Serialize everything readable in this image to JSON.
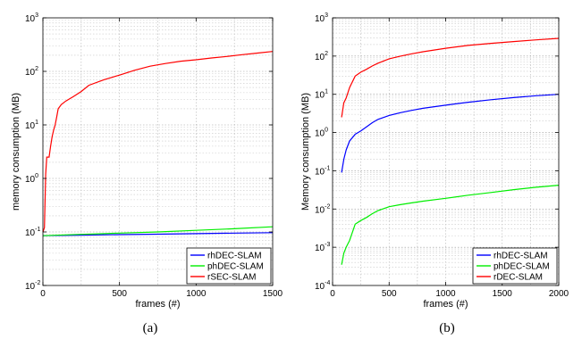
{
  "chart_data": [
    {
      "type": "line",
      "caption": "(a)",
      "xlabel": "frames (#)",
      "ylabel": "memory consumption (MB)",
      "xlim": [
        0,
        1500
      ],
      "ylim": [
        0.01,
        1000
      ],
      "yscale": "log",
      "grid": true,
      "legend_position": "bottom-right",
      "xticks": [
        "0",
        "500",
        "1000",
        "1500"
      ],
      "yticks": [
        {
          "base": "10",
          "exp": "-2"
        },
        {
          "base": "10",
          "exp": "-1"
        },
        {
          "base": "10",
          "exp": "0"
        },
        {
          "base": "10",
          "exp": "1"
        },
        {
          "base": "10",
          "exp": "2"
        },
        {
          "base": "10",
          "exp": "3"
        }
      ],
      "series": [
        {
          "name": "rhDEC-SLAM",
          "color": "#0000ff",
          "x": [
            0,
            250,
            500,
            750,
            1000,
            1250,
            1500
          ],
          "y": [
            0.085,
            0.087,
            0.089,
            0.091,
            0.093,
            0.095,
            0.097
          ]
        },
        {
          "name": "phDEC-SLAM",
          "color": "#00ee00",
          "x": [
            0,
            250,
            500,
            750,
            1000,
            1250,
            1500
          ],
          "y": [
            0.085,
            0.09,
            0.095,
            0.1,
            0.107,
            0.115,
            0.125
          ]
        },
        {
          "name": "rSEC-SLAM",
          "color": "#ff0000",
          "x": [
            0,
            10,
            18,
            25,
            30,
            40,
            50,
            60,
            70,
            80,
            90,
            100,
            120,
            150,
            200,
            250,
            300,
            400,
            500,
            600,
            700,
            800,
            900,
            1000,
            1100,
            1200,
            1300,
            1400,
            1500
          ],
          "y": [
            0.1,
            0.12,
            1.2,
            2.5,
            2.5,
            2.5,
            4,
            6,
            8,
            10,
            14,
            20,
            24,
            28,
            34,
            42,
            55,
            70,
            85,
            105,
            125,
            140,
            155,
            165,
            178,
            190,
            205,
            220,
            235
          ]
        }
      ]
    },
    {
      "type": "line",
      "caption": "(b)",
      "xlabel": "frames (#)",
      "ylabel": "Memory consumption (MB)",
      "xlim": [
        0,
        2000
      ],
      "ylim": [
        0.0001,
        1000
      ],
      "yscale": "log",
      "grid": true,
      "legend_position": "bottom-right",
      "xticks": [
        "0",
        "500",
        "1000",
        "1500",
        "2000"
      ],
      "yticks": [
        {
          "base": "10",
          "exp": "-4"
        },
        {
          "base": "10",
          "exp": "-3"
        },
        {
          "base": "10",
          "exp": "-2"
        },
        {
          "base": "10",
          "exp": "-1"
        },
        {
          "base": "10",
          "exp": "0"
        },
        {
          "base": "10",
          "exp": "1"
        },
        {
          "base": "10",
          "exp": "2"
        },
        {
          "base": "10",
          "exp": "3"
        }
      ],
      "series": [
        {
          "name": "rhDEC-SLAM",
          "color": "#0000ff",
          "x": [
            80,
            100,
            120,
            150,
            200,
            250,
            300,
            350,
            400,
            500,
            600,
            700,
            800,
            1000,
            1200,
            1400,
            1600,
            1800,
            2000
          ],
          "y": [
            0.09,
            0.2,
            0.35,
            0.6,
            0.9,
            1.1,
            1.4,
            1.8,
            2.2,
            2.8,
            3.3,
            3.8,
            4.3,
            5.2,
            6.2,
            7.2,
            8.2,
            9.2,
            10
          ]
        },
        {
          "name": "phDEC-SLAM",
          "color": "#00ee00",
          "x": [
            80,
            100,
            120,
            150,
            200,
            250,
            300,
            350,
            400,
            500,
            600,
            700,
            800,
            1000,
            1200,
            1400,
            1600,
            1800,
            2000
          ],
          "y": [
            0.00035,
            0.0007,
            0.001,
            0.0015,
            0.004,
            0.005,
            0.006,
            0.0075,
            0.009,
            0.0115,
            0.013,
            0.0145,
            0.016,
            0.019,
            0.023,
            0.027,
            0.032,
            0.037,
            0.042
          ]
        },
        {
          "name": "rDEC-SLAM",
          "color": "#ff0000",
          "x": [
            80,
            100,
            120,
            150,
            200,
            250,
            300,
            350,
            400,
            500,
            600,
            700,
            800,
            1000,
            1200,
            1400,
            1600,
            1800,
            2000
          ],
          "y": [
            2.5,
            6,
            8,
            15,
            30,
            38,
            45,
            55,
            65,
            85,
            100,
            115,
            130,
            160,
            190,
            215,
            240,
            265,
            290
          ]
        }
      ]
    }
  ]
}
